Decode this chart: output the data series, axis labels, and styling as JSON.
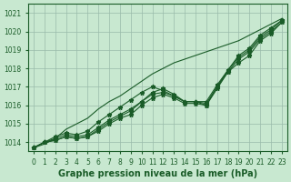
{
  "x": [
    0,
    1,
    2,
    3,
    4,
    5,
    6,
    7,
    8,
    9,
    10,
    11,
    12,
    13,
    14,
    15,
    16,
    17,
    18,
    19,
    20,
    21,
    22,
    23
  ],
  "series": [
    [
      1013.7,
      1014.0,
      1014.1,
      1014.3,
      1014.2,
      1014.3,
      1014.6,
      1015.0,
      1015.3,
      1015.5,
      1016.0,
      1016.4,
      1016.6,
      1016.4,
      1016.1,
      1016.1,
      1016.0,
      1016.9,
      1017.8,
      1018.3,
      1018.7,
      1019.5,
      1019.9,
      1020.5
    ],
    [
      1013.7,
      1014.0,
      1014.1,
      1014.3,
      1014.2,
      1014.3,
      1014.7,
      1015.1,
      1015.4,
      1015.7,
      1016.2,
      1016.6,
      1016.7,
      1016.5,
      1016.2,
      1016.2,
      1016.0,
      1017.0,
      1017.8,
      1018.5,
      1018.9,
      1019.6,
      1020.0,
      1020.5
    ],
    [
      1013.7,
      1014.0,
      1014.2,
      1014.4,
      1014.3,
      1014.4,
      1014.8,
      1015.2,
      1015.5,
      1015.8,
      1016.2,
      1016.7,
      1016.9,
      1016.6,
      1016.2,
      1016.2,
      1016.1,
      1017.0,
      1017.9,
      1018.6,
      1019.0,
      1019.7,
      1020.1,
      1020.6
    ],
    [
      1013.7,
      1014.0,
      1014.3,
      1014.5,
      1014.4,
      1014.6,
      1015.1,
      1015.5,
      1015.9,
      1016.3,
      1016.7,
      1017.0,
      1016.8,
      1016.5,
      1016.2,
      1016.2,
      1016.2,
      1017.1,
      1017.9,
      1018.7,
      1019.1,
      1019.8,
      1020.2,
      1020.6
    ]
  ],
  "smooth_series": [
    1013.7,
    1013.9,
    1014.2,
    1014.7,
    1015.0,
    1015.3,
    1015.8,
    1016.2,
    1016.5,
    1016.9,
    1017.3,
    1017.7,
    1018.0,
    1018.3,
    1018.5,
    1018.7,
    1018.9,
    1019.1,
    1019.3,
    1019.5,
    1019.8,
    1020.1,
    1020.4,
    1020.7
  ],
  "bg_color": "#c8e8d0",
  "grid_color": "#99bbaa",
  "line_color": "#1a5c28",
  "marker": "*",
  "marker_size": 3.5,
  "ylim": [
    1013.5,
    1021.5
  ],
  "yticks": [
    1014,
    1015,
    1016,
    1017,
    1018,
    1019,
    1020,
    1021
  ],
  "xticks": [
    0,
    1,
    2,
    3,
    4,
    5,
    6,
    7,
    8,
    9,
    10,
    11,
    12,
    13,
    14,
    15,
    16,
    17,
    18,
    19,
    20,
    21,
    22,
    23
  ],
  "tick_fontsize": 5.5,
  "xlabel": "Graphe pression niveau de la mer (hPa)",
  "xlabel_fontsize": 7,
  "line_width": 0.8
}
